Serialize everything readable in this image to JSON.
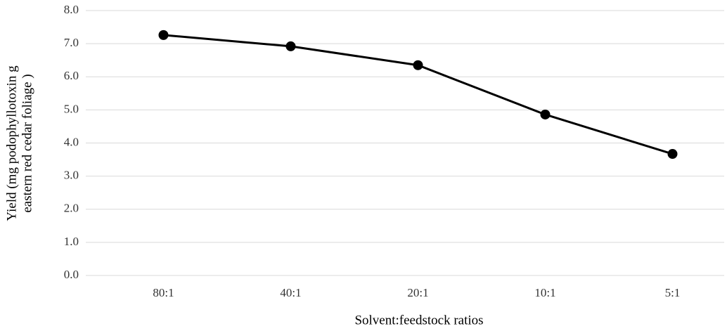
{
  "chart_data": {
    "type": "line",
    "x_label": "Solvent:feedstock ratios",
    "y_label": [
      "Yield (mg podophyllotoxin g",
      "eastern red cedar foliage )"
    ],
    "categories": [
      "80:1",
      "40:1",
      "20:1",
      "10:1",
      "5:1"
    ],
    "values": [
      7.26,
      6.92,
      6.35,
      4.86,
      3.67
    ],
    "color": "#000000",
    "ylim": [
      0,
      8
    ],
    "yticks": [
      {
        "value": 0,
        "label": "0.0"
      },
      {
        "value": 1,
        "label": "1.0"
      },
      {
        "value": 2,
        "label": "2.0"
      },
      {
        "value": 3,
        "label": "3.0"
      },
      {
        "value": 4,
        "label": "4.0"
      },
      {
        "value": 5,
        "label": "5.0"
      },
      {
        "value": 6,
        "label": "6.0"
      },
      {
        "value": 7,
        "label": "7.0"
      },
      {
        "value": 8,
        "label": "8.0"
      }
    ],
    "grid": true
  }
}
